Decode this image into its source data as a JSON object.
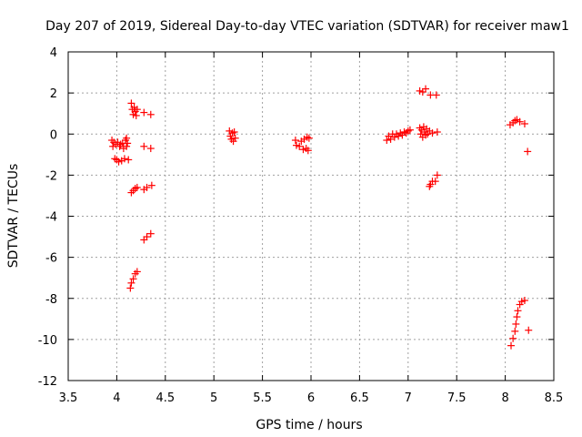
{
  "chart_data": {
    "type": "scatter",
    "title": "Day 207 of 2019, Sidereal Day-to-day VTEC variation (SDTVAR) for receiver maw1",
    "xlabel": "GPS time / hours",
    "ylabel": "SDTVAR / TECUs",
    "xlim": [
      3.5,
      8.5
    ],
    "ylim": [
      -12,
      4
    ],
    "xticks": [
      3.5,
      4,
      4.5,
      5,
      5.5,
      6,
      6.5,
      7,
      7.5,
      8,
      8.5
    ],
    "xtick_labels": [
      "3.5",
      "4",
      "4.5",
      "5",
      "5.5",
      "6",
      "6.5",
      "7",
      "7.5",
      "8",
      "8.5"
    ],
    "yticks": [
      -12,
      -10,
      -8,
      -6,
      -4,
      -2,
      0,
      2,
      4
    ],
    "ytick_labels": [
      "-12",
      "-10",
      "-8",
      "-6",
      "-4",
      "-2",
      "0",
      "2",
      "4"
    ],
    "grid": true,
    "marker": "+",
    "marker_color": "#ff0000",
    "series": [
      {
        "name": "SDTVAR",
        "points": [
          [
            3.95,
            -0.3
          ],
          [
            3.96,
            -0.6
          ],
          [
            3.97,
            -0.4
          ],
          [
            3.98,
            -1.2
          ],
          [
            3.99,
            -0.5
          ],
          [
            4.0,
            -1.25
          ],
          [
            4.01,
            -0.4
          ],
          [
            4.02,
            -1.35
          ],
          [
            4.03,
            -0.6
          ],
          [
            4.04,
            -0.5
          ],
          [
            4.05,
            -1.3
          ],
          [
            4.06,
            -0.45
          ],
          [
            4.07,
            -0.7
          ],
          [
            4.08,
            -1.2
          ],
          [
            4.09,
            -0.3
          ],
          [
            4.1,
            -0.6
          ],
          [
            4.1,
            -0.2
          ],
          [
            4.11,
            -0.45
          ],
          [
            4.12,
            -1.25
          ],
          [
            4.15,
            1.5
          ],
          [
            4.16,
            1.2
          ],
          [
            4.17,
            0.95
          ],
          [
            4.18,
            1.3
          ],
          [
            4.19,
            1.1
          ],
          [
            4.2,
            0.9
          ],
          [
            4.21,
            1.2
          ],
          [
            4.15,
            -2.85
          ],
          [
            4.17,
            -2.75
          ],
          [
            4.19,
            -2.65
          ],
          [
            4.21,
            -2.6
          ],
          [
            4.14,
            -7.5
          ],
          [
            4.15,
            -7.25
          ],
          [
            4.17,
            -7.05
          ],
          [
            4.19,
            -6.8
          ],
          [
            4.21,
            -6.7
          ],
          [
            4.28,
            1.05
          ],
          [
            4.35,
            0.95
          ],
          [
            4.28,
            -0.6
          ],
          [
            4.35,
            -0.7
          ],
          [
            4.28,
            -2.7
          ],
          [
            4.31,
            -2.6
          ],
          [
            4.36,
            -2.5
          ],
          [
            4.28,
            -5.15
          ],
          [
            4.31,
            -5.0
          ],
          [
            4.35,
            -4.85
          ],
          [
            5.16,
            0.15
          ],
          [
            5.17,
            -0.1
          ],
          [
            5.18,
            -0.25
          ],
          [
            5.19,
            0.05
          ],
          [
            5.2,
            -0.35
          ],
          [
            5.21,
            0.1
          ],
          [
            5.22,
            -0.2
          ],
          [
            5.84,
            -0.3
          ],
          [
            5.85,
            -0.55
          ],
          [
            5.88,
            -0.6
          ],
          [
            5.9,
            -0.35
          ],
          [
            5.92,
            -0.75
          ],
          [
            5.93,
            -0.25
          ],
          [
            5.95,
            -0.7
          ],
          [
            5.96,
            -0.15
          ],
          [
            5.97,
            -0.8
          ],
          [
            5.98,
            -0.2
          ],
          [
            6.78,
            -0.3
          ],
          [
            6.8,
            -0.1
          ],
          [
            6.82,
            -0.25
          ],
          [
            6.84,
            0.0
          ],
          [
            6.86,
            -0.15
          ],
          [
            6.88,
            0.0
          ],
          [
            6.9,
            -0.1
          ],
          [
            6.92,
            0.05
          ],
          [
            6.94,
            -0.05
          ],
          [
            6.96,
            0.1
          ],
          [
            6.98,
            0.05
          ],
          [
            7.0,
            0.15
          ],
          [
            7.02,
            0.2
          ],
          [
            7.12,
            2.1
          ],
          [
            7.15,
            2.05
          ],
          [
            7.18,
            2.2
          ],
          [
            7.23,
            1.9
          ],
          [
            7.29,
            1.9
          ],
          [
            7.12,
            0.3
          ],
          [
            7.13,
            0.0
          ],
          [
            7.14,
            0.2
          ],
          [
            7.15,
            -0.15
          ],
          [
            7.16,
            0.35
          ],
          [
            7.17,
            0.1
          ],
          [
            7.18,
            -0.05
          ],
          [
            7.19,
            0.25
          ],
          [
            7.2,
            0.0
          ],
          [
            7.22,
            0.15
          ],
          [
            7.25,
            0.05
          ],
          [
            7.3,
            0.1
          ],
          [
            7.22,
            -2.55
          ],
          [
            7.23,
            -2.45
          ],
          [
            7.25,
            -2.3
          ],
          [
            7.28,
            -2.3
          ],
          [
            7.3,
            -2.0
          ],
          [
            8.05,
            0.45
          ],
          [
            8.08,
            0.55
          ],
          [
            8.1,
            0.65
          ],
          [
            8.12,
            0.7
          ],
          [
            8.15,
            0.6
          ],
          [
            8.2,
            0.5
          ],
          [
            8.23,
            -0.85
          ],
          [
            8.06,
            -10.3
          ],
          [
            8.08,
            -9.95
          ],
          [
            8.1,
            -9.6
          ],
          [
            8.11,
            -9.25
          ],
          [
            8.12,
            -8.9
          ],
          [
            8.13,
            -8.6
          ],
          [
            8.15,
            -8.3
          ],
          [
            8.17,
            -8.15
          ],
          [
            8.2,
            -8.1
          ],
          [
            8.24,
            -9.55
          ]
        ]
      }
    ]
  }
}
